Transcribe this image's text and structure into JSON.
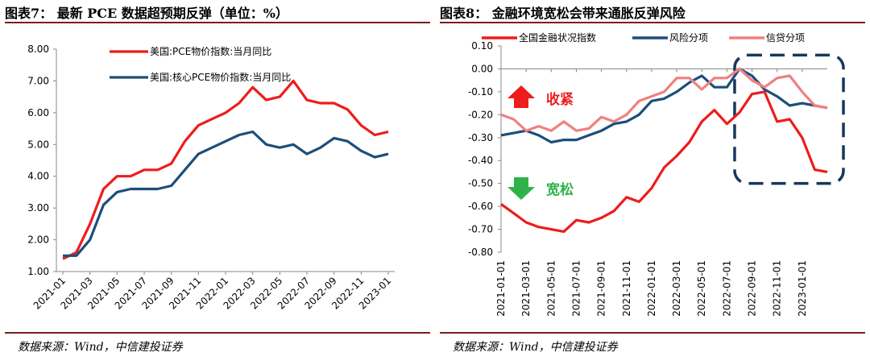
{
  "left": {
    "title": "图表7： 最新 PCE 数据超预期反弹（单位：%）",
    "source": "数据来源：Wind，中信建投证券"
  },
  "right": {
    "title": "图表8： 金融环境宽松会带来通胀反弹风险",
    "source": "数据来源：Wind，中信建投证券"
  },
  "colors": {
    "red": "#ee1c1c",
    "navy": "#1b4f7a",
    "pink": "#f08080",
    "green": "#2db34a",
    "box": "#17375e"
  },
  "chart_data": [
    {
      "type": "line",
      "x": [
        "2021-01",
        "2021-02",
        "2021-03",
        "2021-04",
        "2021-05",
        "2021-06",
        "2021-07",
        "2021-08",
        "2021-09",
        "2021-10",
        "2021-11",
        "2021-12",
        "2022-01",
        "2022-02",
        "2022-03",
        "2022-04",
        "2022-05",
        "2022-06",
        "2022-07",
        "2022-08",
        "2022-09",
        "2022-10",
        "2022-11",
        "2022-12",
        "2023-01"
      ],
      "x_tick_labels": [
        "2021-01",
        "2021-03",
        "2021-05",
        "2021-07",
        "2021-09",
        "2021-11",
        "2022-01",
        "2022-03",
        "2022-05",
        "2022-07",
        "2022-09",
        "2022-11",
        "2023-01"
      ],
      "series": [
        {
          "name": "美国:PCE物价指数:当月同比",
          "color": "#ee1c1c",
          "values": [
            1.4,
            1.6,
            2.5,
            3.6,
            4.0,
            4.0,
            4.2,
            4.2,
            4.4,
            5.1,
            5.6,
            5.8,
            6.0,
            6.3,
            6.8,
            6.4,
            6.5,
            7.0,
            6.4,
            6.3,
            6.3,
            6.1,
            5.6,
            5.3,
            5.4
          ]
        },
        {
          "name": "美国:核心PCE物价指数:当月同比",
          "color": "#1b4f7a",
          "values": [
            1.5,
            1.5,
            2.0,
            3.1,
            3.5,
            3.6,
            3.6,
            3.6,
            3.7,
            4.2,
            4.7,
            4.9,
            5.1,
            5.3,
            5.4,
            5.0,
            4.9,
            5.0,
            4.7,
            4.9,
            5.2,
            5.1,
            4.8,
            4.6,
            4.7
          ]
        }
      ],
      "y_ticks": [
        "1.00",
        "2.00",
        "3.00",
        "4.00",
        "5.00",
        "6.00",
        "7.00",
        "8.00"
      ],
      "ylim": [
        1.0,
        8.0
      ],
      "legend": "top-center, inside plot"
    },
    {
      "type": "line",
      "x": [
        "2021-01",
        "2021-02",
        "2021-03",
        "2021-04",
        "2021-05",
        "2021-06",
        "2021-07",
        "2021-08",
        "2021-09",
        "2021-10",
        "2021-11",
        "2021-12",
        "2022-01",
        "2022-02",
        "2022-03",
        "2022-04",
        "2022-05",
        "2022-06",
        "2022-07",
        "2022-08",
        "2022-09",
        "2022-10",
        "2022-11",
        "2022-12",
        "2023-01",
        "2023-02",
        "2023-03"
      ],
      "x_tick_labels": [
        "2021-01-01",
        "2021-03-01",
        "2021-05-01",
        "2021-07-01",
        "2021-09-01",
        "2021-11-01",
        "2022-01-01",
        "2022-03-01",
        "2022-05-01",
        "2022-07-01",
        "2022-09-01",
        "2022-11-01",
        "2023-01-01"
      ],
      "series": [
        {
          "name": "全国金融状况指数",
          "color": "#ee1c1c",
          "values": [
            -0.59,
            -0.63,
            -0.67,
            -0.69,
            -0.7,
            -0.71,
            -0.66,
            -0.67,
            -0.65,
            -0.62,
            -0.56,
            -0.58,
            -0.52,
            -0.43,
            -0.38,
            -0.32,
            -0.23,
            -0.18,
            -0.24,
            -0.19,
            -0.11,
            -0.1,
            -0.23,
            -0.22,
            -0.3,
            -0.44,
            -0.45
          ]
        },
        {
          "name": "风险分项",
          "color": "#1b4f7a",
          "values": [
            -0.29,
            -0.28,
            -0.27,
            -0.29,
            -0.32,
            -0.31,
            -0.31,
            -0.29,
            -0.27,
            -0.24,
            -0.23,
            -0.2,
            -0.14,
            -0.13,
            -0.1,
            -0.06,
            -0.03,
            -0.08,
            -0.08,
            0.0,
            -0.03,
            -0.09,
            -0.12,
            -0.16,
            -0.15,
            -0.16,
            -0.17
          ]
        },
        {
          "name": "信贷分项",
          "color": "#f08080",
          "values": [
            -0.2,
            -0.22,
            -0.27,
            -0.25,
            -0.27,
            -0.23,
            -0.27,
            -0.26,
            -0.21,
            -0.23,
            -0.2,
            -0.14,
            -0.12,
            -0.1,
            -0.04,
            -0.04,
            -0.09,
            -0.04,
            -0.04,
            0.0,
            -0.05,
            -0.08,
            -0.04,
            -0.03,
            -0.1,
            -0.16,
            -0.17
          ]
        }
      ],
      "y_ticks": [
        "0.10",
        "0.00",
        "-0.10",
        "-0.20",
        "-0.30",
        "-0.40",
        "-0.50",
        "-0.60",
        "-0.70",
        "-0.80"
      ],
      "ylim": [
        -0.8,
        0.1
      ],
      "legend": "top, horizontal",
      "annotations": {
        "tighten": "收紧",
        "loosen": "宽松"
      }
    }
  ]
}
